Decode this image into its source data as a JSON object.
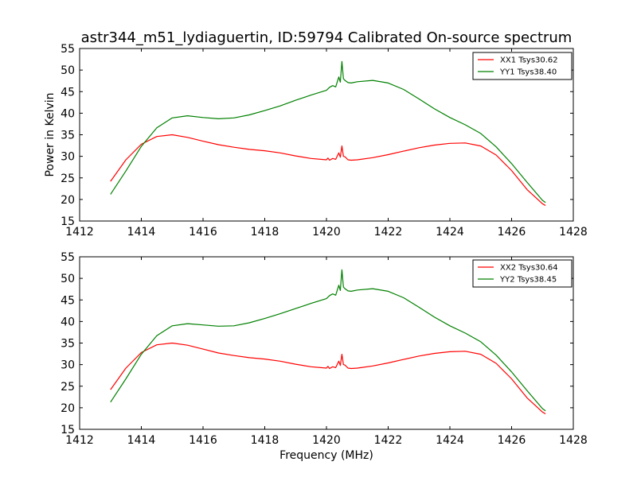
{
  "figure": {
    "title": "astr344_m51_lydiaguertin, ID:59794 Calibrated On-source spectrum"
  },
  "chart_data": [
    {
      "type": "line",
      "title": "astr344_m51_lydiaguertin, ID:59794 Calibrated On-source spectrum",
      "xlabel": "",
      "ylabel": "Power in Kelvin",
      "xlim": [
        1412,
        1428
      ],
      "ylim": [
        15,
        55
      ],
      "xticks": [
        "1412",
        "1414",
        "1416",
        "1418",
        "1420",
        "1422",
        "1424",
        "1426",
        "1428"
      ],
      "yticks": [
        "15",
        "20",
        "25",
        "30",
        "35",
        "40",
        "45",
        "50",
        "55"
      ],
      "grid": false,
      "legend_position": "top-right",
      "series": [
        {
          "name": "XX1 Tsys30.62",
          "color": "#ff0000",
          "x": [
            1413.0,
            1413.5,
            1414.0,
            1414.5,
            1415.0,
            1415.5,
            1416.0,
            1416.5,
            1417.0,
            1417.5,
            1418.0,
            1418.5,
            1419.0,
            1419.5,
            1420.0,
            1420.05,
            1420.1,
            1420.2,
            1420.3,
            1420.4,
            1420.45,
            1420.5,
            1420.55,
            1420.6,
            1420.7,
            1420.8,
            1421.0,
            1421.5,
            1422.0,
            1422.5,
            1423.0,
            1423.5,
            1424.0,
            1424.5,
            1425.0,
            1425.5,
            1426.0,
            1426.5,
            1427.0,
            1427.1
          ],
          "y": [
            24.2,
            29.2,
            32.8,
            34.6,
            35.0,
            34.4,
            33.5,
            32.7,
            32.1,
            31.6,
            31.3,
            30.8,
            30.1,
            29.5,
            29.2,
            29.6,
            29.1,
            29.5,
            29.3,
            30.8,
            29.8,
            32.4,
            30.0,
            29.9,
            29.2,
            29.1,
            29.2,
            29.7,
            30.4,
            31.2,
            32.0,
            32.6,
            33.0,
            33.1,
            32.4,
            30.3,
            26.7,
            22.3,
            19.0,
            18.6
          ]
        },
        {
          "name": "YY1 Tsys38.40",
          "color": "#008000",
          "x": [
            1413.0,
            1413.5,
            1414.0,
            1414.5,
            1415.0,
            1415.5,
            1416.0,
            1416.5,
            1417.0,
            1417.5,
            1418.0,
            1418.5,
            1419.0,
            1419.5,
            1420.0,
            1420.1,
            1420.2,
            1420.3,
            1420.4,
            1420.45,
            1420.5,
            1420.55,
            1420.6,
            1420.7,
            1420.8,
            1421.0,
            1421.5,
            1422.0,
            1422.5,
            1423.0,
            1423.5,
            1424.0,
            1424.5,
            1425.0,
            1425.5,
            1426.0,
            1426.5,
            1427.0,
            1427.1
          ],
          "y": [
            21.2,
            26.6,
            32.3,
            36.6,
            38.9,
            39.4,
            39.0,
            38.7,
            38.9,
            39.6,
            40.6,
            41.7,
            43.0,
            44.2,
            45.3,
            46.0,
            46.4,
            46.1,
            48.4,
            47.2,
            52.0,
            48.0,
            47.6,
            47.1,
            47.0,
            47.3,
            47.6,
            47.0,
            45.5,
            43.3,
            41.0,
            39.0,
            37.3,
            35.3,
            32.2,
            28.3,
            24.0,
            19.8,
            19.3
          ]
        }
      ]
    },
    {
      "type": "line",
      "title": "",
      "xlabel": "Frequency (MHz)",
      "ylabel": "",
      "xlim": [
        1412,
        1428
      ],
      "ylim": [
        15,
        55
      ],
      "xticks": [
        "1412",
        "1414",
        "1416",
        "1418",
        "1420",
        "1422",
        "1424",
        "1426",
        "1428"
      ],
      "yticks": [
        "15",
        "20",
        "25",
        "30",
        "35",
        "40",
        "45",
        "50",
        "55"
      ],
      "grid": false,
      "legend_position": "top-right",
      "series": [
        {
          "name": "XX2 Tsys30.64",
          "color": "#ff0000",
          "x": [
            1413.0,
            1413.5,
            1414.0,
            1414.5,
            1415.0,
            1415.5,
            1416.0,
            1416.5,
            1417.0,
            1417.5,
            1418.0,
            1418.5,
            1419.0,
            1419.5,
            1420.0,
            1420.05,
            1420.1,
            1420.2,
            1420.3,
            1420.4,
            1420.45,
            1420.5,
            1420.55,
            1420.6,
            1420.7,
            1420.8,
            1421.0,
            1421.5,
            1422.0,
            1422.5,
            1423.0,
            1423.5,
            1424.0,
            1424.5,
            1425.0,
            1425.5,
            1426.0,
            1426.5,
            1427.0,
            1427.1
          ],
          "y": [
            24.2,
            29.2,
            32.8,
            34.6,
            35.0,
            34.5,
            33.6,
            32.7,
            32.1,
            31.6,
            31.3,
            30.8,
            30.1,
            29.5,
            29.2,
            29.6,
            29.1,
            29.5,
            29.3,
            30.8,
            29.8,
            32.4,
            30.0,
            29.9,
            29.2,
            29.1,
            29.2,
            29.7,
            30.4,
            31.2,
            32.0,
            32.6,
            33.0,
            33.1,
            32.4,
            30.3,
            26.7,
            22.3,
            19.0,
            18.6
          ]
        },
        {
          "name": "YY2 Tsys38.45",
          "color": "#008000",
          "x": [
            1413.0,
            1413.5,
            1414.0,
            1414.5,
            1415.0,
            1415.5,
            1416.0,
            1416.5,
            1417.0,
            1417.5,
            1418.0,
            1418.5,
            1419.0,
            1419.5,
            1420.0,
            1420.1,
            1420.2,
            1420.3,
            1420.4,
            1420.45,
            1420.5,
            1420.55,
            1420.6,
            1420.7,
            1420.8,
            1421.0,
            1421.5,
            1422.0,
            1422.5,
            1423.0,
            1423.5,
            1424.0,
            1424.5,
            1425.0,
            1425.5,
            1426.0,
            1426.5,
            1427.0,
            1427.1
          ],
          "y": [
            21.3,
            26.7,
            32.4,
            36.7,
            39.0,
            39.5,
            39.2,
            38.9,
            39.0,
            39.7,
            40.7,
            41.8,
            43.0,
            44.2,
            45.3,
            46.0,
            46.4,
            46.1,
            48.4,
            47.2,
            52.0,
            48.0,
            47.6,
            47.1,
            47.0,
            47.3,
            47.6,
            47.0,
            45.5,
            43.3,
            41.0,
            39.0,
            37.3,
            35.3,
            32.2,
            28.3,
            24.0,
            19.8,
            19.3
          ]
        }
      ]
    }
  ]
}
